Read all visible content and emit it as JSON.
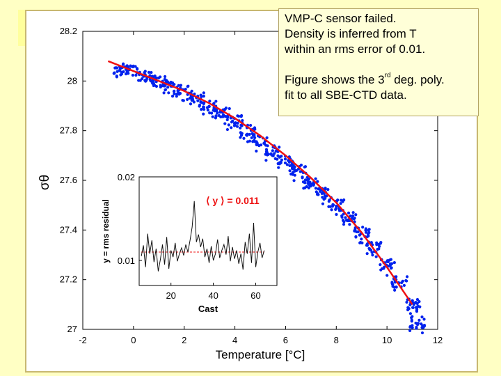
{
  "chart_data": [
    {
      "type": "scatter",
      "xlabel": "Temperature [°C]",
      "ylabel": "σθ",
      "xlim": [
        -2,
        12
      ],
      "ylim": [
        27,
        28.2
      ],
      "xticks": [
        -2,
        0,
        2,
        4,
        6,
        8,
        10,
        12
      ],
      "yticks": [
        27,
        27.2,
        27.4,
        27.6,
        27.8,
        28,
        28.2
      ],
      "grid": false,
      "series": [
        {
          "kind": "scatter",
          "color": "#0022ee",
          "x": [
            -0.5,
            0.0,
            0.5,
            1.0,
            1.5,
            2.0,
            2.5,
            3.0,
            3.5,
            4.0,
            4.5,
            5.0,
            5.5,
            6.0,
            6.5,
            7.0,
            7.5,
            8.0,
            8.5,
            9.0,
            9.5,
            10.0,
            10.5,
            11.0,
            11.2
          ],
          "y": [
            28.05,
            28.04,
            28.02,
            28.0,
            27.98,
            27.96,
            27.93,
            27.9,
            27.87,
            27.84,
            27.8,
            27.76,
            27.72,
            27.68,
            27.64,
            27.59,
            27.55,
            27.5,
            27.45,
            27.39,
            27.33,
            27.26,
            27.19,
            27.1,
            27.03
          ]
        },
        {
          "kind": "line",
          "color": "#ee1111",
          "x": [
            -1.0,
            0.0,
            1.0,
            2.0,
            3.0,
            4.0,
            5.0,
            6.0,
            7.0,
            8.0,
            9.0,
            10.0,
            11.0
          ],
          "y": [
            28.08,
            28.04,
            28.0,
            27.96,
            27.91,
            27.85,
            27.78,
            27.7,
            27.61,
            27.51,
            27.39,
            27.25,
            27.1
          ]
        }
      ]
    },
    {
      "type": "line",
      "xlabel": "Cast",
      "ylabel": "y = rms residual",
      "xlim": [
        5,
        70
      ],
      "ylim": [
        0.007,
        0.02
      ],
      "xticks": [
        20,
        40,
        60
      ],
      "yticks": [
        0.01,
        0.02
      ],
      "mean_label": "⟨ y ⟩ =  0.011",
      "mean_value": 0.011,
      "x": [
        6,
        7,
        8,
        9,
        10,
        11,
        12,
        13,
        14,
        15,
        16,
        17,
        18,
        19,
        20,
        21,
        22,
        23,
        24,
        25,
        26,
        27,
        28,
        29,
        30,
        31,
        32,
        33,
        34,
        35,
        36,
        37,
        38,
        39,
        40,
        41,
        42,
        43,
        44,
        45,
        46,
        47,
        48,
        49,
        50,
        51,
        52,
        53,
        54,
        55,
        56,
        57,
        58,
        59,
        60,
        61,
        62,
        63,
        64
      ],
      "values": [
        0.0105,
        0.0118,
        0.0092,
        0.0132,
        0.0108,
        0.0124,
        0.0098,
        0.0114,
        0.0087,
        0.0101,
        0.0119,
        0.0095,
        0.0128,
        0.009,
        0.0112,
        0.0104,
        0.0121,
        0.0099,
        0.0108,
        0.0115,
        0.0106,
        0.0119,
        0.011,
        0.0124,
        0.014,
        0.0171,
        0.0122,
        0.0131,
        0.0116,
        0.0126,
        0.0104,
        0.0114,
        0.0097,
        0.0117,
        0.01,
        0.0108,
        0.0125,
        0.0103,
        0.0112,
        0.0119,
        0.0107,
        0.0129,
        0.0099,
        0.0116,
        0.0102,
        0.0112,
        0.0096,
        0.0108,
        0.0089,
        0.0122,
        0.0108,
        0.0132,
        0.0097,
        0.0145,
        0.0092,
        0.011,
        0.0121,
        0.0103,
        0.0112
      ],
      "line_color": "#111111",
      "mean_color": "#ee1111"
    }
  ],
  "note": {
    "line1": "VMP-C sensor failed.",
    "line2": "Density is inferred from T",
    "line3": "within an rms error of 0.01.",
    "line4_pre": "Figure shows the 3",
    "line4_sup": "rd",
    "line4_post": " deg. poly.",
    "line5": "fit to all SBE-CTD data."
  },
  "colors": {
    "background": "#ffffc4",
    "scatter": "#0022ee",
    "fit_line": "#ee1111"
  }
}
